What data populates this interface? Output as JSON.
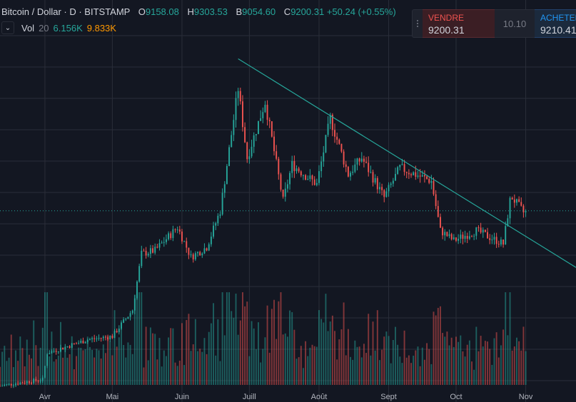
{
  "legend": {
    "symbol": "Bitcoin / Dollar · D · BITSTAMP",
    "o_label": "O",
    "o": "9158.08",
    "h_label": "H",
    "h": "9303.53",
    "b_label": "B",
    "b": "9054.60",
    "c_label": "C",
    "c": "9200.31",
    "change": "+50.24 (+0.55%)"
  },
  "volume": {
    "label": "Vol",
    "length": "20",
    "value": "6.156K",
    "ma": "9.833K",
    "toggle_icon": "chevron-down-icon"
  },
  "trade_panel": {
    "sell_label": "VENDRE",
    "sell_price": "9200.31",
    "spread": "10.10",
    "buy_label": "ACHETER",
    "buy_price": "9210.41"
  },
  "colors": {
    "up": "#26a69a",
    "down": "#ef5350",
    "trendline": "#26a69a",
    "background": "#131722",
    "grid": "#2a2e39"
  },
  "chart_data": {
    "type": "candlestick",
    "symbol": "Bitcoin / Dollar",
    "interval": "D",
    "exchange": "BITSTAMP",
    "x_tick_labels": [
      "Avr",
      "Mai",
      "Juin",
      "Juill",
      "Août",
      "Sept",
      "Oct",
      "Nov"
    ],
    "x_range": [
      "2019-03-12",
      "2019-11-04"
    ],
    "y_range": [
      3500,
      14500
    ],
    "last_close": 9200.31,
    "grid": true,
    "close_anchors": [
      [
        "2019-03-12",
        3900
      ],
      [
        "2019-03-31",
        4100
      ],
      [
        "2019-04-02",
        4900
      ],
      [
        "2019-04-20",
        5300
      ],
      [
        "2019-05-01",
        5400
      ],
      [
        "2019-05-10",
        6200
      ],
      [
        "2019-05-14",
        7900
      ],
      [
        "2019-05-20",
        8000
      ],
      [
        "2019-05-30",
        8700
      ],
      [
        "2019-06-05",
        7800
      ],
      [
        "2019-06-12",
        8100
      ],
      [
        "2019-06-18",
        9200
      ],
      [
        "2019-06-26",
        12900
      ],
      [
        "2019-06-30",
        10800
      ],
      [
        "2019-07-08",
        12500
      ],
      [
        "2019-07-16",
        9500
      ],
      [
        "2019-07-20",
        10600
      ],
      [
        "2019-07-31",
        10000
      ],
      [
        "2019-08-06",
        12000
      ],
      [
        "2019-08-14",
        10300
      ],
      [
        "2019-08-20",
        10800
      ],
      [
        "2019-08-30",
        9600
      ],
      [
        "2019-09-06",
        10500
      ],
      [
        "2019-09-20",
        10100
      ],
      [
        "2019-09-24",
        8600
      ],
      [
        "2019-09-30",
        8300
      ],
      [
        "2019-10-10",
        8600
      ],
      [
        "2019-10-22",
        8200
      ],
      [
        "2019-10-25",
        9500
      ],
      [
        "2019-10-26",
        9600
      ],
      [
        "2019-10-31",
        9150
      ],
      [
        "2019-11-01",
        9200
      ]
    ],
    "trendline": {
      "start": [
        "2019-06-26",
        13800
      ],
      "end": [
        "2019-11-04",
        8300
      ]
    },
    "volume": {
      "max_k": 60
    }
  }
}
